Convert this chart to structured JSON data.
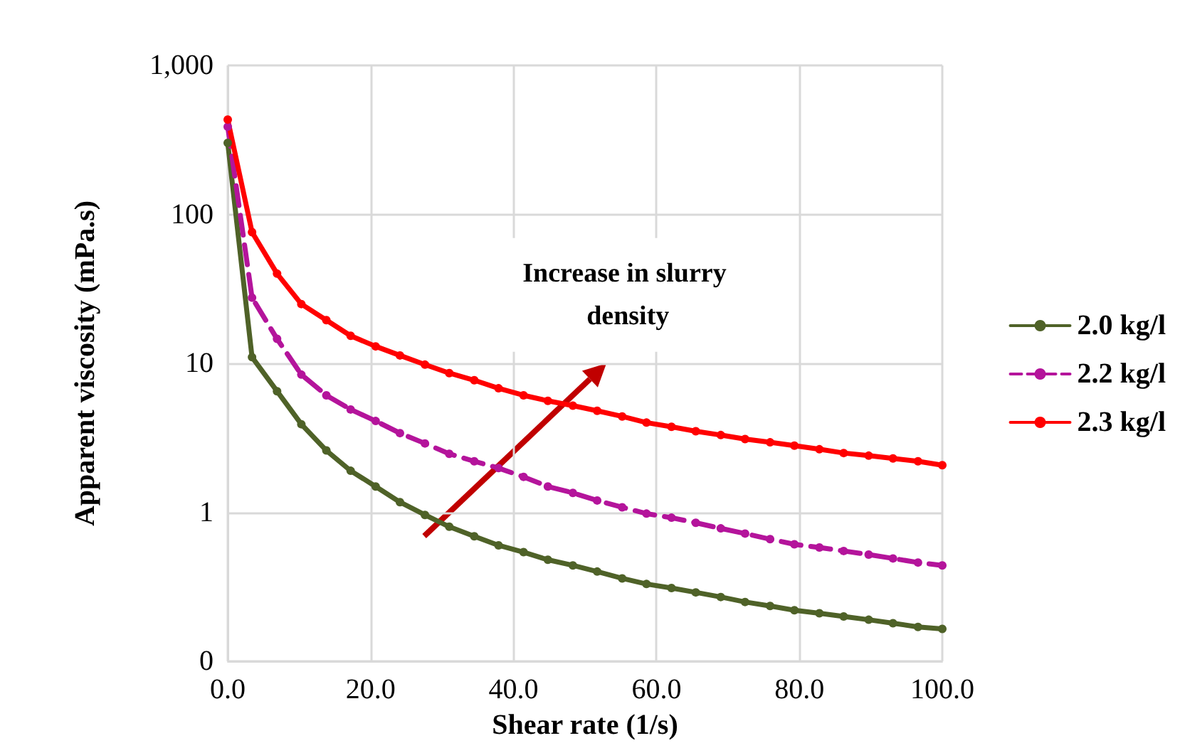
{
  "chart_data": {
    "type": "line",
    "xlabel": "Shear rate (1/s)",
    "ylabel": "Apparent viscosity (mPa.s)",
    "x": [
      0,
      3.4,
      6.9,
      10.3,
      13.8,
      17.2,
      20.7,
      24.1,
      27.6,
      31.0,
      34.5,
      37.9,
      41.4,
      44.8,
      48.3,
      51.7,
      55.2,
      58.6,
      62.1,
      65.5,
      69.0,
      72.4,
      75.9,
      79.3,
      82.8,
      86.2,
      89.7,
      93.1,
      96.6,
      100
    ],
    "series": [
      {
        "name": "2.0 kg/l",
        "color": "#4f6228",
        "line_style": "solid",
        "values": [
          302,
          11,
          6.5,
          3.9,
          2.6,
          1.9,
          1.49,
          1.17,
          0.96,
          0.8,
          0.69,
          0.6,
          0.54,
          0.48,
          0.44,
          0.4,
          0.36,
          0.33,
          0.31,
          0.29,
          0.27,
          0.25,
          0.235,
          0.22,
          0.21,
          0.2,
          0.19,
          0.18,
          0.17,
          0.165
        ]
      },
      {
        "name": "2.2 kg/l",
        "color": "#b4149b",
        "line_style": "dashed",
        "values": [
          388,
          27.6,
          14.6,
          8.4,
          6.1,
          4.9,
          4.1,
          3.4,
          2.9,
          2.47,
          2.2,
          1.98,
          1.73,
          1.49,
          1.35,
          1.2,
          1.08,
          0.98,
          0.92,
          0.85,
          0.78,
          0.72,
          0.66,
          0.61,
          0.58,
          0.55,
          0.52,
          0.49,
          0.46,
          0.44
        ]
      },
      {
        "name": "2.3 kg/l",
        "color": "#ff0000",
        "line_style": "solid",
        "values": [
          433,
          76,
          40,
          25,
          19.5,
          15.3,
          13,
          11.3,
          9.8,
          8.6,
          7.7,
          6.8,
          6.1,
          5.6,
          5.2,
          4.8,
          4.4,
          4.0,
          3.75,
          3.5,
          3.3,
          3.1,
          2.95,
          2.8,
          2.65,
          2.5,
          2.4,
          2.3,
          2.2,
          2.07
        ]
      }
    ],
    "xlim": [
      0,
      100
    ],
    "xticks": [
      {
        "value": 0,
        "label": "0.0"
      },
      {
        "value": 20,
        "label": "20.0"
      },
      {
        "value": 40,
        "label": "40.0"
      },
      {
        "value": 60,
        "label": "60.0"
      },
      {
        "value": 80,
        "label": "80.0"
      },
      {
        "value": 100,
        "label": "100.0"
      }
    ],
    "ylim": [
      0.1,
      1000
    ],
    "yticks": [
      {
        "value": 0.1,
        "label": "0"
      },
      1,
      10,
      100,
      {
        "value": 1000,
        "label": "1,000"
      }
    ],
    "log": "y",
    "grid": true,
    "legend": "right",
    "marker": "circle",
    "annotations": [
      "Increase in slurry density"
    ]
  }
}
